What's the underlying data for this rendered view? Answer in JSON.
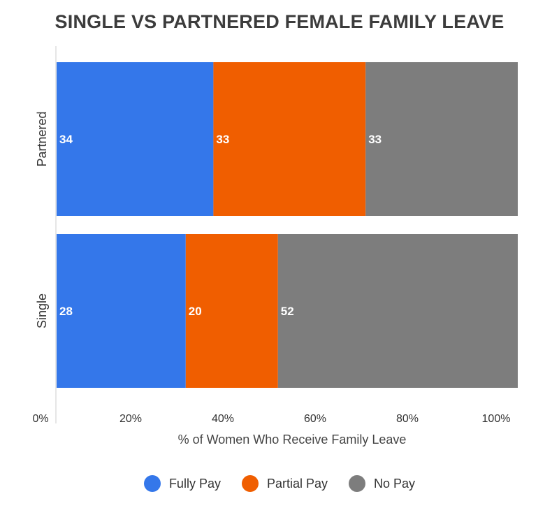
{
  "chart_data": {
    "type": "bar",
    "orientation": "horizontal",
    "stacked": true,
    "title": "SINGLE VS PARTNERED FEMALE FAMILY LEAVE",
    "xlabel": "% of Women Who Receive Family Leave",
    "ylabel": "",
    "xlim": [
      0,
      100
    ],
    "x_ticks": [
      "0%",
      "20%",
      "40%",
      "60%",
      "80%",
      "100%"
    ],
    "categories": [
      "Partnered",
      "Single"
    ],
    "series": [
      {
        "name": "Fully Pay",
        "color": "#3477ea",
        "values": [
          34,
          28
        ]
      },
      {
        "name": "Partial Pay",
        "color": "#f05e00",
        "values": [
          33,
          20
        ]
      },
      {
        "name": "No Pay",
        "color": "#7d7d7d",
        "values": [
          33,
          52
        ]
      }
    ],
    "data_labels": true,
    "grid": false,
    "legend_position": "bottom"
  }
}
